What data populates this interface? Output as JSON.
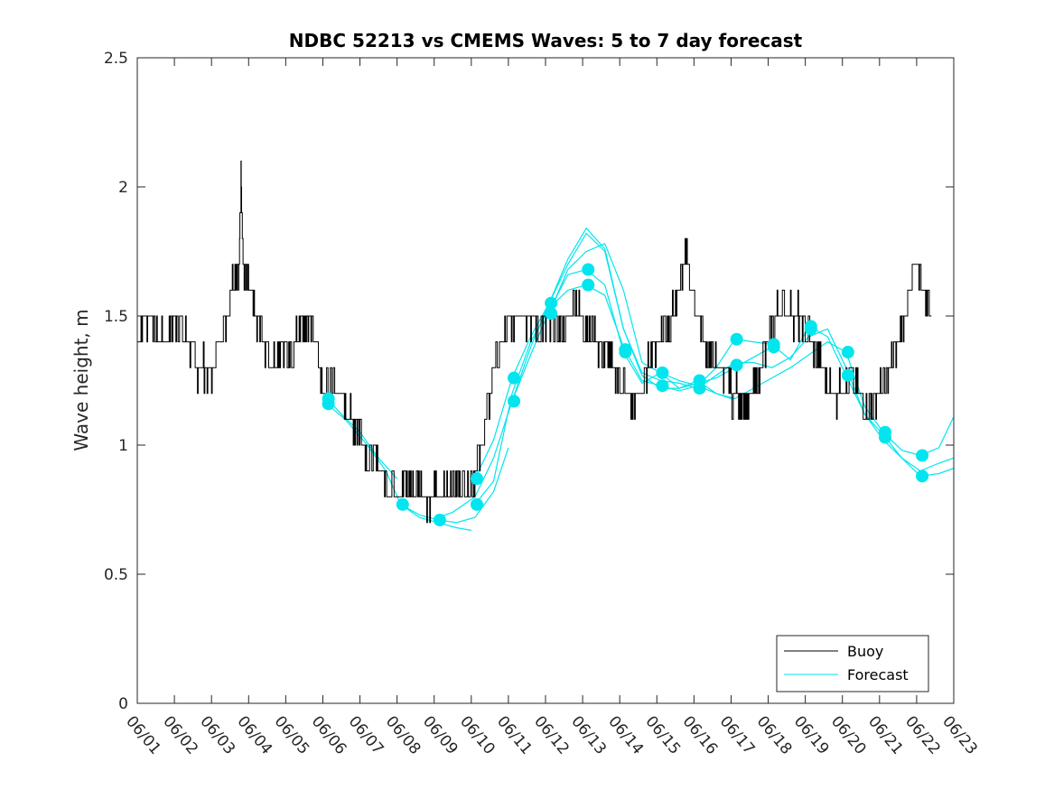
{
  "chart_data": {
    "type": "line",
    "title": "NDBC 52213 vs CMEMS Waves: 5 to 7 day forecast",
    "ylabel": "Wave height, m",
    "xlabel": "",
    "ylim": [
      0,
      2.5
    ],
    "yticks": [
      0,
      0.5,
      1,
      1.5,
      2,
      2.5
    ],
    "ytick_labels": [
      "0",
      "0.5",
      "1",
      "1.5",
      "2",
      "2.5"
    ],
    "xlim_day": [
      1,
      23
    ],
    "xticks": [
      "06/01",
      "06/02",
      "06/03",
      "06/04",
      "06/05",
      "06/06",
      "06/07",
      "06/08",
      "06/09",
      "06/10",
      "06/11",
      "06/12",
      "06/13",
      "06/14",
      "06/15",
      "06/16",
      "06/17",
      "06/18",
      "06/19",
      "06/20",
      "06/21",
      "06/22",
      "06/23"
    ],
    "legend": {
      "position": "bottom-right",
      "entries": [
        "Buoy",
        "Forecast"
      ]
    },
    "colors": {
      "buoy": "#000000",
      "forecast": "#00e5ee"
    },
    "series": [
      {
        "name": "Buoy",
        "x": [
          1.0,
          1.2,
          1.4,
          1.6,
          1.8,
          2.0,
          2.2,
          2.4,
          2.6,
          2.8,
          3.0,
          3.2,
          3.4,
          3.6,
          3.75,
          3.8,
          3.85,
          4.0,
          4.2,
          4.4,
          4.6,
          4.8,
          5.0,
          5.2,
          5.4,
          5.6,
          5.8,
          6.0,
          6.2,
          6.4,
          6.6,
          6.8,
          7.0,
          7.2,
          7.4,
          7.6,
          7.8,
          8.0,
          8.2,
          8.4,
          8.6,
          8.8,
          9.0,
          9.2,
          9.4,
          9.6,
          9.8,
          10.0,
          10.2,
          10.4,
          10.6,
          10.8,
          11.0,
          11.2,
          11.4,
          11.6,
          11.8,
          12.0,
          12.2,
          12.4,
          12.6,
          12.8,
          13.0,
          13.2,
          13.4,
          13.6,
          13.8,
          14.0,
          14.2,
          14.4,
          14.6,
          14.8,
          15.0,
          15.2,
          15.4,
          15.6,
          15.8,
          16.0,
          16.2,
          16.4,
          16.6,
          16.75,
          16.9,
          17.0,
          17.2,
          17.4,
          17.6,
          17.8,
          18.0,
          18.2,
          18.4,
          18.6,
          18.8,
          19.0,
          19.2,
          19.4,
          19.6,
          19.8,
          20.0,
          20.2,
          20.4,
          20.6,
          20.8,
          21.0,
          21.2,
          21.4,
          21.6,
          21.8,
          22.0,
          22.2,
          22.4
        ],
        "y": [
          1.4,
          1.5,
          1.5,
          1.4,
          1.4,
          1.5,
          1.45,
          1.4,
          1.3,
          1.3,
          1.25,
          1.4,
          1.5,
          1.65,
          1.7,
          2.05,
          1.7,
          1.6,
          1.5,
          1.4,
          1.3,
          1.35,
          1.4,
          1.35,
          1.5,
          1.45,
          1.4,
          1.2,
          1.25,
          1.2,
          1.15,
          1.1,
          1.05,
          0.95,
          0.95,
          0.9,
          0.85,
          0.85,
          0.85,
          0.85,
          0.85,
          0.8,
          0.8,
          0.8,
          0.85,
          0.85,
          0.85,
          0.85,
          0.95,
          1.1,
          1.3,
          1.4,
          1.45,
          1.5,
          1.5,
          1.5,
          1.45,
          1.45,
          1.45,
          1.45,
          1.5,
          1.55,
          1.5,
          1.45,
          1.4,
          1.35,
          1.3,
          1.25,
          1.2,
          1.15,
          1.2,
          1.35,
          1.4,
          1.45,
          1.5,
          1.6,
          1.75,
          1.55,
          1.45,
          1.35,
          1.3,
          1.3,
          1.25,
          1.2,
          1.2,
          1.15,
          1.2,
          1.3,
          1.4,
          1.5,
          1.55,
          1.5,
          1.5,
          1.45,
          1.4,
          1.3,
          1.25,
          1.2,
          1.2,
          1.25,
          1.2,
          1.15,
          1.15,
          1.2,
          1.25,
          1.35,
          1.45,
          1.6,
          1.7,
          1.6,
          1.5
        ]
      },
      {
        "name": "Forecast",
        "runs": [
          {
            "x": [
              6.1,
              6.5,
              7.0,
              7.5,
              8.0
            ],
            "y": [
              1.18,
              1.12,
              1.05,
              0.95,
              0.87
            ]
          },
          {
            "x": [
              6.1,
              6.6,
              7.2,
              7.7,
              8.1,
              8.6,
              9.1,
              9.6,
              10.0
            ],
            "y": [
              1.16,
              1.1,
              1.0,
              0.9,
              0.77,
              0.72,
              0.7,
              0.68,
              0.67
            ]
          },
          {
            "x": [
              8.1,
              8.6,
              9.1,
              9.6,
              10.1,
              10.6,
              11.0
            ],
            "y": [
              0.77,
              0.73,
              0.71,
              0.7,
              0.72,
              0.82,
              0.99
            ]
          },
          {
            "x": [
              9.1,
              9.5,
              10.1,
              10.6,
              11.1,
              11.6,
              12.1,
              12.6,
              13.1,
              13.6,
              14.1,
              14.6,
              15.1,
              15.6,
              16.1,
              16.6,
              17.1,
              17.6,
              18.1
            ],
            "y": [
              0.72,
              0.74,
              0.8,
              0.95,
              1.17,
              1.38,
              1.55,
              1.7,
              1.82,
              1.75,
              1.45,
              1.27,
              1.22,
              1.22,
              1.24,
              1.26,
              1.3,
              1.34,
              1.38
            ]
          },
          {
            "x": [
              10.1,
              10.6,
              11.1,
              11.6,
              12.1,
              12.6,
              13.1,
              13.6,
              14.1,
              14.6,
              15.1,
              15.6,
              16.1,
              16.6,
              17.1,
              17.6,
              18.1,
              18.6,
              19.1,
              19.6,
              20.1,
              20.6,
              21.1,
              21.6,
              22.1,
              22.6,
              23.0
            ],
            "y": [
              0.87,
              1.02,
              1.26,
              1.42,
              1.55,
              1.72,
              1.84,
              1.76,
              1.45,
              1.28,
              1.25,
              1.24,
              1.22,
              1.27,
              1.32,
              1.32,
              1.3,
              1.34,
              1.42,
              1.45,
              1.3,
              1.12,
              1.02,
              0.95,
              0.9,
              0.93,
              0.95
            ]
          },
          {
            "x": [
              10.1,
              10.6,
              11.1,
              11.6,
              12.1,
              12.6,
              13.1,
              13.6,
              14.1,
              14.6,
              15.1,
              15.6,
              16.1,
              16.6,
              17.1,
              17.6,
              18.1,
              18.6,
              19.1,
              19.6,
              20.1,
              20.6,
              21.1,
              21.6,
              22.1,
              22.6,
              23.0
            ],
            "y": [
              0.77,
              0.86,
              1.2,
              1.4,
              1.53,
              1.6,
              1.62,
              1.58,
              1.38,
              1.25,
              1.23,
              1.21,
              1.23,
              1.3,
              1.41,
              1.4,
              1.39,
              1.33,
              1.46,
              1.42,
              1.27,
              1.12,
              1.04,
              0.95,
              0.88,
              0.89,
              0.91
            ]
          },
          {
            "x": [
              11.1,
              11.6,
              12.1,
              12.6,
              13.1,
              13.6,
              14.1,
              14.6,
              15.1,
              15.6,
              16.1,
              16.6,
              17.1,
              17.6,
              18.1,
              18.6,
              19.1,
              19.6,
              20.1,
              20.6,
              21.1,
              21.6,
              22.1,
              22.6,
              23.0
            ],
            "y": [
              1.17,
              1.35,
              1.52,
              1.66,
              1.68,
              1.62,
              1.36,
              1.24,
              1.28,
              1.22,
              1.25,
              1.2,
              1.18,
              1.22,
              1.26,
              1.3,
              1.35,
              1.4,
              1.36,
              1.15,
              1.05,
              0.98,
              0.96,
              0.99,
              1.11
            ]
          },
          {
            "x": [
              12.1,
              12.6,
              13.1,
              13.6,
              14.1,
              14.6,
              15.1,
              15.6,
              16.1,
              16.6,
              17.0
            ],
            "y": [
              1.51,
              1.68,
              1.75,
              1.78,
              1.6,
              1.32,
              1.28,
              1.25,
              1.23,
              1.2,
              1.18
            ]
          }
        ],
        "markers": [
          {
            "x": 6.15,
            "y": 1.18
          },
          {
            "x": 6.15,
            "y": 1.16
          },
          {
            "x": 8.15,
            "y": 0.77
          },
          {
            "x": 9.15,
            "y": 0.71
          },
          {
            "x": 10.15,
            "y": 0.87
          },
          {
            "x": 10.15,
            "y": 0.77
          },
          {
            "x": 11.15,
            "y": 1.26
          },
          {
            "x": 11.15,
            "y": 1.17
          },
          {
            "x": 12.15,
            "y": 1.55
          },
          {
            "x": 12.15,
            "y": 1.51
          },
          {
            "x": 13.15,
            "y": 1.68
          },
          {
            "x": 13.15,
            "y": 1.62
          },
          {
            "x": 14.15,
            "y": 1.37
          },
          {
            "x": 14.15,
            "y": 1.36
          },
          {
            "x": 15.15,
            "y": 1.28
          },
          {
            "x": 15.15,
            "y": 1.23
          },
          {
            "x": 16.15,
            "y": 1.25
          },
          {
            "x": 16.15,
            "y": 1.22
          },
          {
            "x": 17.15,
            "y": 1.41
          },
          {
            "x": 17.15,
            "y": 1.31
          },
          {
            "x": 18.15,
            "y": 1.39
          },
          {
            "x": 18.15,
            "y": 1.38
          },
          {
            "x": 19.15,
            "y": 1.46
          },
          {
            "x": 19.15,
            "y": 1.45
          },
          {
            "x": 20.15,
            "y": 1.36
          },
          {
            "x": 20.15,
            "y": 1.27
          },
          {
            "x": 21.15,
            "y": 1.05
          },
          {
            "x": 21.15,
            "y": 1.03
          },
          {
            "x": 22.15,
            "y": 0.96
          },
          {
            "x": 22.15,
            "y": 0.88
          }
        ]
      }
    ]
  }
}
